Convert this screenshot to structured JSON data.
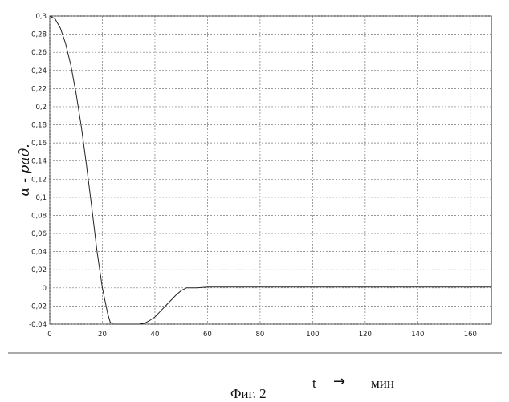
{
  "chart_data": {
    "type": "line",
    "ylabel": "α - рад.",
    "x_ticks": [
      "0",
      "20",
      "40",
      "60",
      "80",
      "100",
      "120",
      "140",
      "160"
    ],
    "y_ticks": [
      "-0,04",
      "-0,02",
      "0",
      "0,02",
      "0,04",
      "0,06",
      "0,08",
      "0,1",
      "0,12",
      "0,14",
      "0,16",
      "0,18",
      "0,2",
      "0,22",
      "0,24",
      "0,26",
      "0,28",
      "0,3"
    ],
    "xlim": [
      0,
      168
    ],
    "ylim": [
      -0.04,
      0.3
    ],
    "grid": true,
    "series": [
      {
        "x": [
          0,
          2,
          4,
          6,
          8,
          10,
          12,
          14,
          16,
          18,
          20,
          22,
          23,
          24,
          26,
          28,
          30,
          32,
          34,
          36,
          38,
          40,
          42,
          44,
          46,
          48,
          50,
          52,
          56,
          60,
          80,
          100,
          120,
          140,
          160,
          168
        ],
        "y": [
          0.3,
          0.297,
          0.287,
          0.27,
          0.246,
          0.215,
          0.178,
          0.135,
          0.088,
          0.04,
          0.0,
          -0.028,
          -0.038,
          -0.04,
          -0.04,
          -0.04,
          -0.04,
          -0.04,
          -0.04,
          -0.039,
          -0.036,
          -0.032,
          -0.026,
          -0.02,
          -0.014,
          -0.008,
          -0.003,
          0.0,
          0.0,
          0.001,
          0.001,
          0.001,
          0.001,
          0.001,
          0.001,
          0.001
        ],
        "color": "#222222"
      }
    ]
  },
  "caption": {
    "figure": "Фиг. 2",
    "x_var": "t",
    "arrow": "→",
    "unit": "мин"
  }
}
